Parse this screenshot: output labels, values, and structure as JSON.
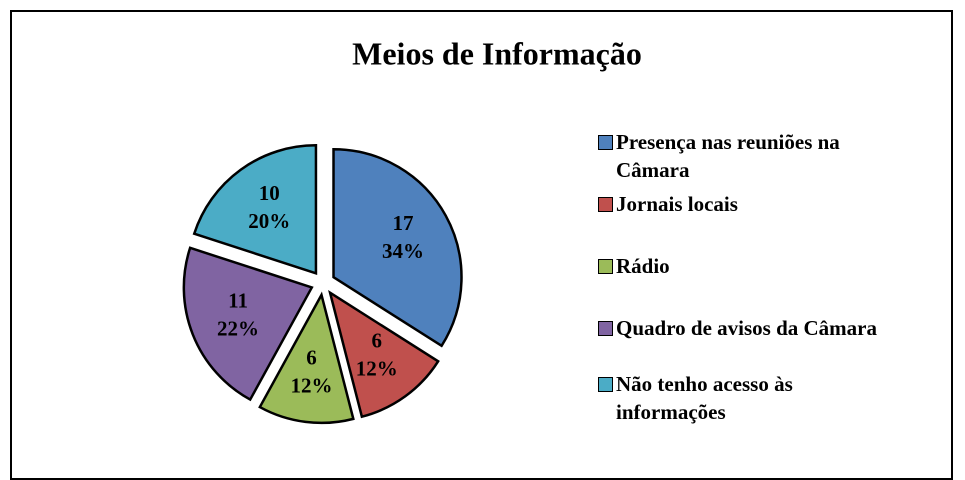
{
  "chart_data": {
    "type": "pie",
    "title": "Meios de Informação",
    "categories": [
      "Presença nas reuniões na Câmara",
      "Jornais locais",
      "Rádio",
      "Quadro de avisos da Câmara",
      "Não tenho acesso às informações"
    ],
    "values": [
      17,
      6,
      6,
      11,
      10
    ],
    "percentages": [
      "34%",
      "12%",
      "12%",
      "22%",
      "20%"
    ],
    "colors": [
      "#4f81bd",
      "#c0504d",
      "#9bbb59",
      "#8064a2",
      "#4bacc6"
    ],
    "legend": "right"
  }
}
